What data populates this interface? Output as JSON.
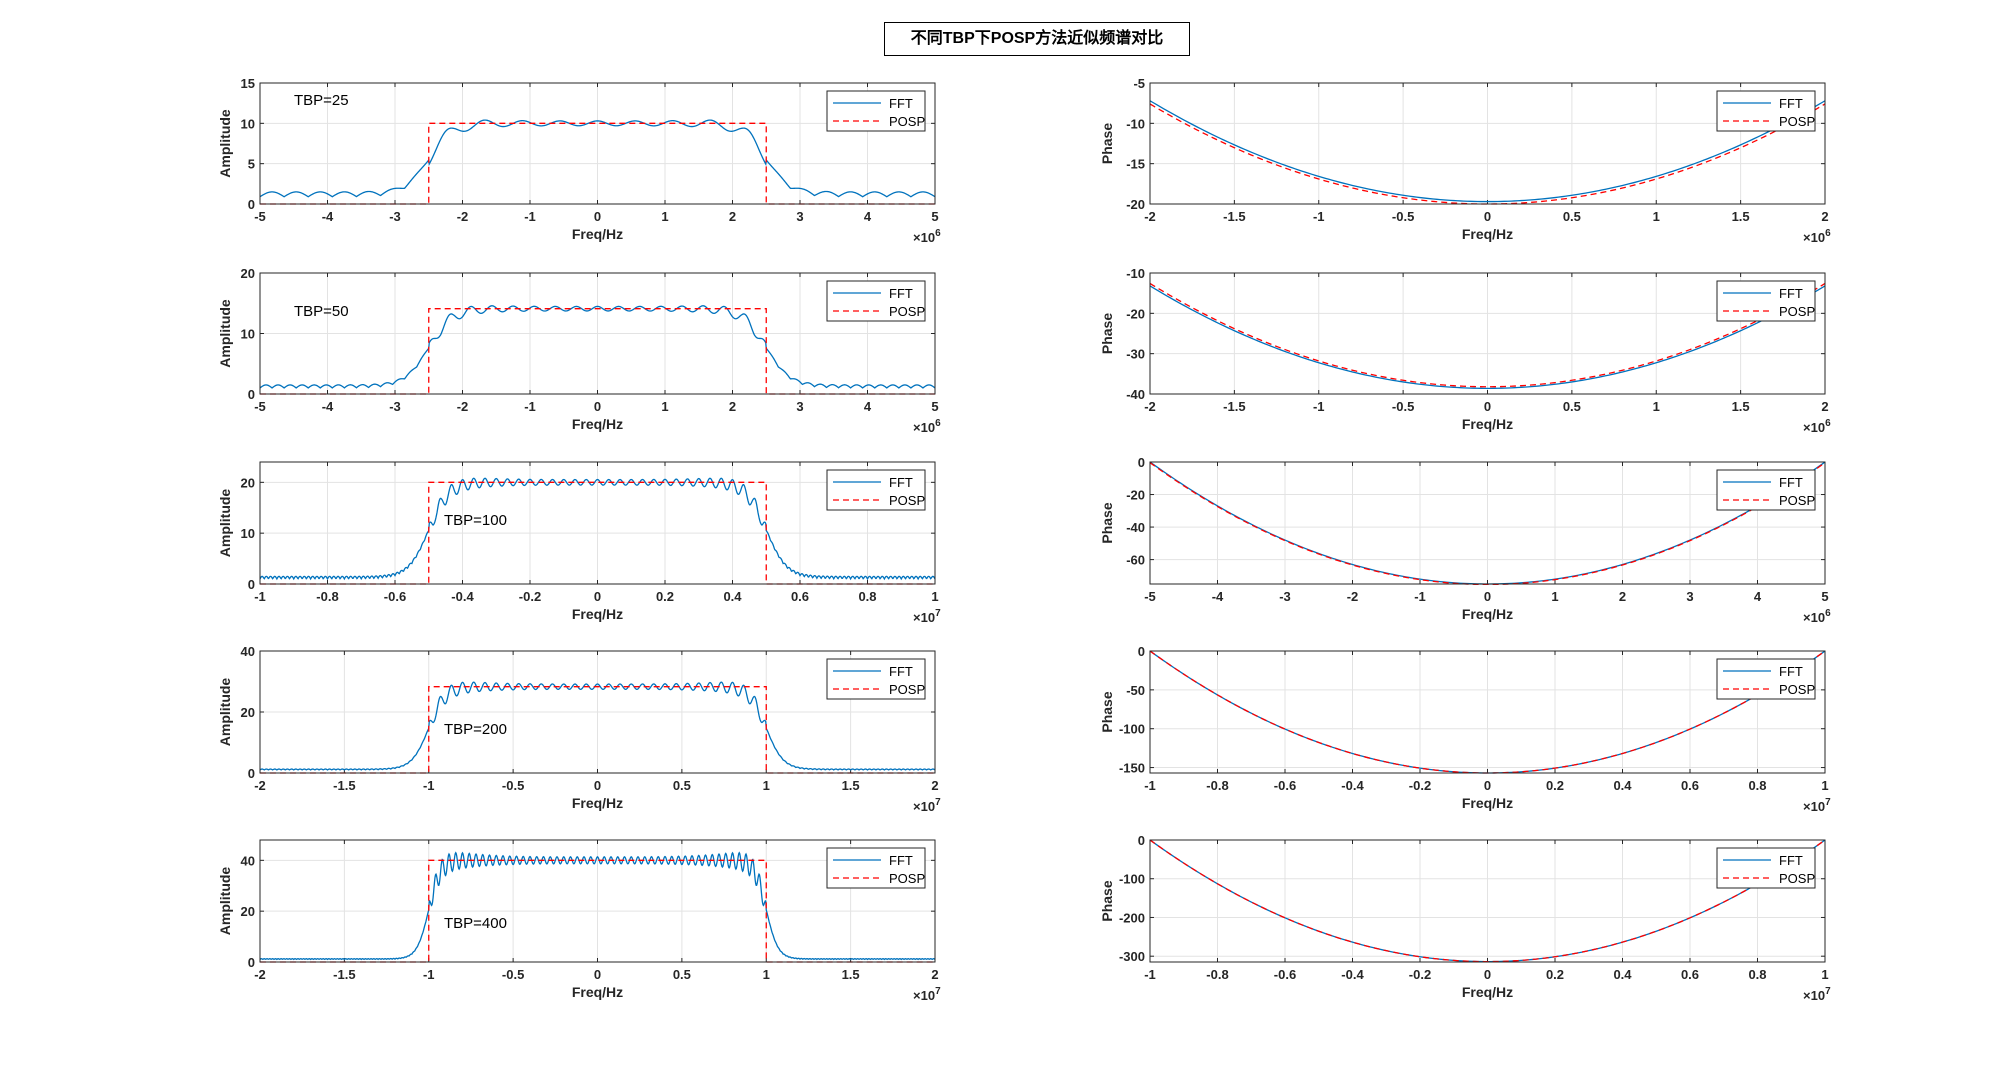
{
  "figure_title": "不同TBP下POSP方法近似频谱对比",
  "legend_labels": [
    "FFT",
    "POSP"
  ],
  "colors": {
    "fft": "#0072BD",
    "posp": "#FF0000",
    "grid": "#e3e3e3",
    "axis": "#262626"
  },
  "chart_data": [
    {
      "type": "line",
      "panel": "amplitude",
      "xlabel": "Freq/Hz",
      "ylabel": "Amplitude",
      "annotation": "TBP=25",
      "xlim": [
        -5,
        5
      ],
      "ylim": [
        0,
        15
      ],
      "xticks": [
        "-5",
        "-4",
        "-3",
        "-2",
        "-1",
        "0",
        "1",
        "2",
        "3",
        "4",
        "5"
      ],
      "yticks": [
        "0",
        "5",
        "10",
        "15"
      ],
      "x_exponent": "6",
      "legend_position": "top-right",
      "grid": true,
      "series": [
        {
          "name": "FFT",
          "style": "solid",
          "kind": "amp",
          "params": {
            "flat": 10,
            "edge": 2.5,
            "ripple_amp": 1.2,
            "ripple_n": 9,
            "rise_w": 0.35,
            "floor": 0.9,
            "floor_amp": 0.6,
            "floor_n": 7
          }
        },
        {
          "name": "POSP",
          "style": "dashed",
          "kind": "rect",
          "params": {
            "flat": 10,
            "edge": 2.5
          }
        }
      ]
    },
    {
      "type": "line",
      "panel": "phase",
      "xlabel": "Freq/Hz",
      "ylabel": "Phase",
      "xlim": [
        -2,
        2
      ],
      "ylim": [
        -20,
        -5
      ],
      "xticks": [
        "-2",
        "-1.5",
        "-1",
        "-0.5",
        "0",
        "0.5",
        "1",
        "1.5",
        "2"
      ],
      "yticks": [
        "-20",
        "-15",
        "-10",
        "-5"
      ],
      "x_exponent": "6",
      "legend_position": "top-right",
      "grid": true,
      "series": [
        {
          "name": "FFT",
          "style": "solid",
          "kind": "parabola",
          "params": {
            "ymin": -19.7,
            "yedge": -7.2
          }
        },
        {
          "name": "POSP",
          "style": "dashed",
          "kind": "parabola",
          "params": {
            "ymin": -20.0,
            "yedge": -7.6
          }
        }
      ]
    },
    {
      "type": "line",
      "panel": "amplitude",
      "xlabel": "Freq/Hz",
      "ylabel": "Amplitude",
      "annotation": "TBP=50",
      "xlim": [
        -5,
        5
      ],
      "ylim": [
        0,
        20
      ],
      "xticks": [
        "-5",
        "-4",
        "-3",
        "-2",
        "-1",
        "0",
        "1",
        "2",
        "3",
        "4",
        "5"
      ],
      "yticks": [
        "0",
        "10",
        "20"
      ],
      "x_exponent": "6",
      "legend_position": "top-right",
      "grid": true,
      "series": [
        {
          "name": "FFT",
          "style": "solid",
          "kind": "amp",
          "params": {
            "flat": 14.1,
            "edge": 2.5,
            "ripple_amp": 1.5,
            "ripple_n": 16,
            "rise_w": 0.35,
            "floor": 1.0,
            "floor_amp": 0.5,
            "floor_n": 14
          }
        },
        {
          "name": "POSP",
          "style": "dashed",
          "kind": "rect",
          "params": {
            "flat": 14.1,
            "edge": 2.5
          }
        }
      ]
    },
    {
      "type": "line",
      "panel": "phase",
      "xlabel": "Freq/Hz",
      "ylabel": "Phase",
      "xlim": [
        -2,
        2
      ],
      "ylim": [
        -40,
        -10
      ],
      "xticks": [
        "-2",
        "-1.5",
        "-1",
        "-0.5",
        "0",
        "0.5",
        "1",
        "1.5",
        "2"
      ],
      "yticks": [
        "-40",
        "-30",
        "-20",
        "-10"
      ],
      "x_exponent": "6",
      "legend_position": "top-right",
      "grid": true,
      "series": [
        {
          "name": "FFT",
          "style": "solid",
          "kind": "parabola",
          "params": {
            "ymin": -38.6,
            "yedge": -13.2
          }
        },
        {
          "name": "POSP",
          "style": "dashed",
          "kind": "parabola",
          "params": {
            "ymin": -38.2,
            "yedge": -12.6
          }
        }
      ]
    },
    {
      "type": "line",
      "panel": "amplitude",
      "xlabel": "Freq/Hz",
      "ylabel": "Amplitude",
      "annotation": "TBP=100",
      "xlim": [
        -1,
        1
      ],
      "ylim": [
        0,
        24
      ],
      "xticks": [
        "-1",
        "-0.8",
        "-0.6",
        "-0.4",
        "-0.2",
        "0",
        "0.2",
        "0.4",
        "0.6",
        "0.8",
        "1"
      ],
      "yticks": [
        "0",
        "10",
        "20"
      ],
      "x_exponent": "7",
      "legend_position": "top-right",
      "grid": true,
      "series": [
        {
          "name": "FFT",
          "style": "solid",
          "kind": "amp",
          "params": {
            "flat": 20,
            "edge": 0.5,
            "ripple_amp": 2.2,
            "ripple_n": 30,
            "rise_w": 0.06,
            "floor": 1.0,
            "floor_amp": 0.5,
            "floor_n": 40
          }
        },
        {
          "name": "POSP",
          "style": "dashed",
          "kind": "rect",
          "params": {
            "flat": 20,
            "edge": 0.5
          }
        }
      ]
    },
    {
      "type": "line",
      "panel": "phase",
      "xlabel": "Freq/Hz",
      "ylabel": "Phase",
      "xlim": [
        -5,
        5
      ],
      "ylim": [
        -75,
        0
      ],
      "xticks": [
        "-5",
        "-4",
        "-3",
        "-2",
        "-1",
        "0",
        "1",
        "2",
        "3",
        "4",
        "5"
      ],
      "yticks": [
        "-60",
        "-40",
        "-20",
        "0"
      ],
      "x_exponent": "6",
      "legend_position": "top-right",
      "grid": true,
      "series": [
        {
          "name": "FFT",
          "style": "solid",
          "kind": "parabola",
          "params": {
            "ymin": -75,
            "yedge": 0
          }
        },
        {
          "name": "POSP",
          "style": "dashed",
          "kind": "parabola",
          "params": {
            "ymin": -75.3,
            "yedge": -0.4
          }
        }
      ]
    },
    {
      "type": "line",
      "panel": "amplitude",
      "xlabel": "Freq/Hz",
      "ylabel": "Amplitude",
      "annotation": "TBP=200",
      "xlim": [
        -2,
        2
      ],
      "ylim": [
        0,
        40
      ],
      "xticks": [
        "-2",
        "-1.5",
        "-1",
        "-0.5",
        "0",
        "0.5",
        "1",
        "1.5",
        "2"
      ],
      "yticks": [
        "0",
        "20",
        "40"
      ],
      "x_exponent": "7",
      "legend_position": "top-right",
      "grid": true,
      "series": [
        {
          "name": "FFT",
          "style": "solid",
          "kind": "amp",
          "params": {
            "flat": 28.3,
            "edge": 1.0,
            "ripple_amp": 3.5,
            "ripple_n": 30,
            "rise_w": 0.1,
            "floor": 1.0,
            "floor_amp": 0.3,
            "floor_n": 40
          }
        },
        {
          "name": "POSP",
          "style": "dashed",
          "kind": "rect",
          "params": {
            "flat": 28.3,
            "edge": 1.0
          }
        }
      ]
    },
    {
      "type": "line",
      "panel": "phase",
      "xlabel": "Freq/Hz",
      "ylabel": "Phase",
      "xlim": [
        -1,
        1
      ],
      "ylim": [
        -157,
        0
      ],
      "xticks": [
        "-1",
        "-0.8",
        "-0.6",
        "-0.4",
        "-0.2",
        "0",
        "0.2",
        "0.4",
        "0.6",
        "0.8",
        "1"
      ],
      "yticks": [
        "-150",
        "-100",
        "-50",
        "0"
      ],
      "x_exponent": "7",
      "legend_position": "top-right",
      "grid": true,
      "series": [
        {
          "name": "FFT",
          "style": "solid",
          "kind": "parabola",
          "params": {
            "ymin": -157,
            "yedge": 0
          }
        },
        {
          "name": "POSP",
          "style": "dashed",
          "kind": "parabola",
          "params": {
            "ymin": -157,
            "yedge": 0
          }
        }
      ]
    },
    {
      "type": "line",
      "panel": "amplitude",
      "xlabel": "Freq/Hz",
      "ylabel": "Amplitude",
      "annotation": "TBP=400",
      "xlim": [
        -2,
        2
      ],
      "ylim": [
        0,
        48
      ],
      "xticks": [
        "-2",
        "-1.5",
        "-1",
        "-0.5",
        "0",
        "0.5",
        "1",
        "1.5",
        "2"
      ],
      "yticks": [
        "0",
        "20",
        "40"
      ],
      "x_exponent": "7",
      "legend_position": "top-right",
      "grid": true,
      "series": [
        {
          "name": "FFT",
          "style": "solid",
          "kind": "amp",
          "params": {
            "flat": 40,
            "edge": 1.0,
            "ripple_amp": 5.5,
            "ripple_n": 50,
            "rise_w": 0.07,
            "floor": 1.0,
            "floor_amp": 0.3,
            "floor_n": 60
          }
        },
        {
          "name": "POSP",
          "style": "dashed",
          "kind": "rect",
          "params": {
            "flat": 40,
            "edge": 1.0
          }
        }
      ]
    },
    {
      "type": "line",
      "panel": "phase",
      "xlabel": "Freq/Hz",
      "ylabel": "Phase",
      "xlim": [
        -1,
        1
      ],
      "ylim": [
        -315,
        0
      ],
      "xticks": [
        "-1",
        "-0.8",
        "-0.6",
        "-0.4",
        "-0.2",
        "0",
        "0.2",
        "0.4",
        "0.6",
        "0.8",
        "1"
      ],
      "yticks": [
        "-300",
        "-200",
        "-100",
        "0"
      ],
      "x_exponent": "7",
      "legend_position": "top-right",
      "grid": true,
      "series": [
        {
          "name": "FFT",
          "style": "solid",
          "kind": "parabola",
          "params": {
            "ymin": -314,
            "yedge": 0
          }
        },
        {
          "name": "POSP",
          "style": "dashed",
          "kind": "parabola",
          "params": {
            "ymin": -314,
            "yedge": 0
          }
        }
      ]
    }
  ]
}
